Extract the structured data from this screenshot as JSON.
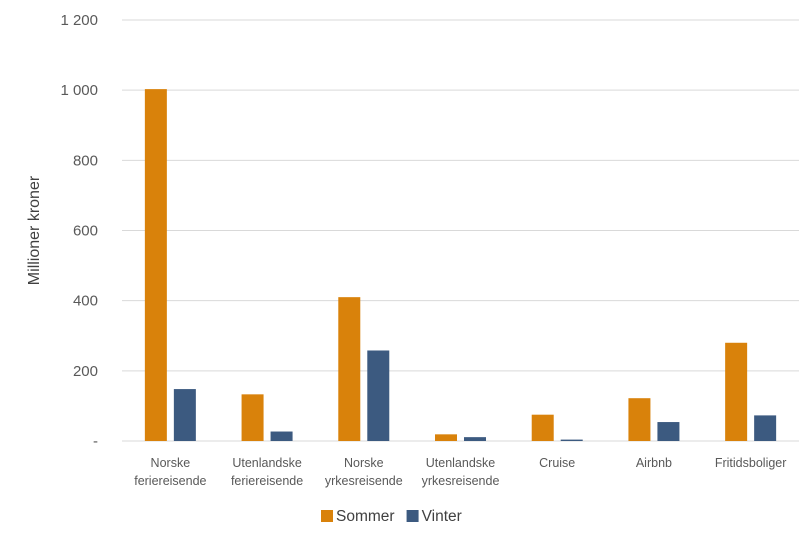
{
  "chart_data": {
    "type": "bar",
    "title": "",
    "xlabel": "",
    "ylabel": "Millioner kroner",
    "ylim": [
      0,
      1200
    ],
    "yticks": [
      {
        "value": 0,
        "label": "-"
      },
      {
        "value": 200,
        "label": "200"
      },
      {
        "value": 400,
        "label": "400"
      },
      {
        "value": 600,
        "label": "600"
      },
      {
        "value": 800,
        "label": "800"
      },
      {
        "value": 1000,
        "label": "1 000"
      },
      {
        "value": 1200,
        "label": "1 200"
      }
    ],
    "grid": true,
    "legend_position": "bottom",
    "categories": [
      [
        "Norske",
        "feriereisende"
      ],
      [
        "Utenlandske",
        "feriereisende"
      ],
      [
        "Norske",
        "yrkesreisende"
      ],
      [
        "Utenlandske",
        "yrkesreisende"
      ],
      [
        "Cruise"
      ],
      [
        "Airbnb"
      ],
      [
        "Fritidsboliger"
      ]
    ],
    "series": [
      {
        "name": "Sommer",
        "color": "#D9820B",
        "values": [
          1003,
          133,
          410,
          19,
          75,
          122,
          280
        ]
      },
      {
        "name": "Vinter",
        "color": "#3C5A80",
        "values": [
          148,
          27,
          258,
          11,
          4,
          54,
          73
        ]
      }
    ]
  }
}
